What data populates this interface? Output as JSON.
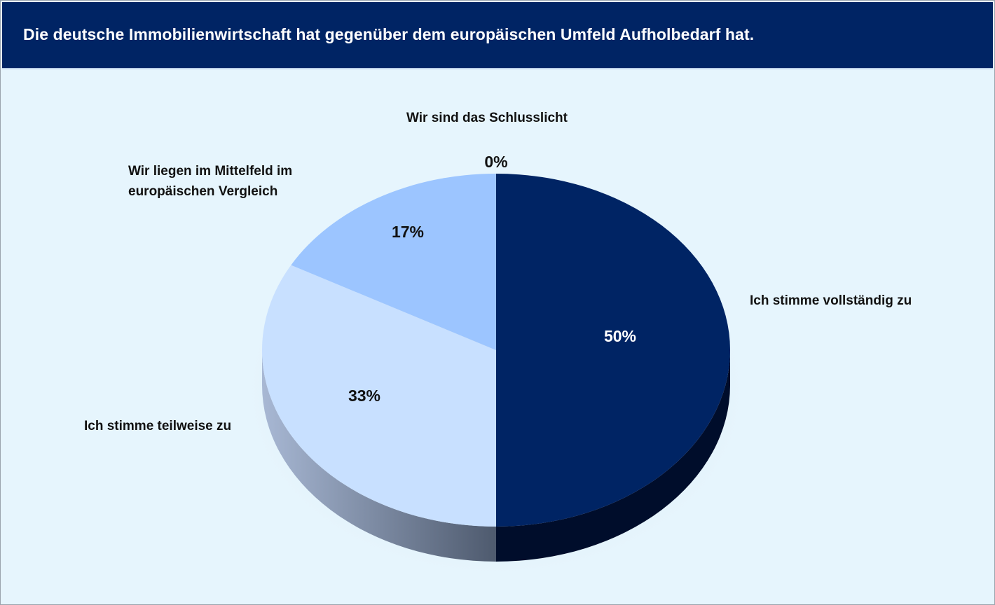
{
  "title": "Die deutsche Immobilienwirtschaft hat gegenüber dem europäischen Umfeld Aufholbedarf hat.",
  "colors": {
    "header": "#002464",
    "background": "#e6f5fd"
  },
  "chart_data": {
    "type": "pie",
    "title": "",
    "three_d": true,
    "legend": "none",
    "slices": [
      {
        "label": "Ich stimme vollständig zu",
        "value": 50,
        "value_label": "50%",
        "color": "#002464",
        "side_color": "#000d2b",
        "text_color": "#ffffff"
      },
      {
        "label": "Ich stimme teilweise zu",
        "value": 33,
        "value_label": "33%",
        "color": "#c8e0ff",
        "side_color": "#7a8aa3",
        "text_color": "#111111"
      },
      {
        "label": "Wir liegen im Mittelfeld im europäischen Vergleich",
        "label_lines": [
          "Wir liegen im Mittelfeld im",
          "europäischen Vergleich"
        ],
        "value": 17,
        "value_label": "17%",
        "color": "#9cc5ff",
        "side_color": "#6f86a8",
        "text_color": "#111111"
      },
      {
        "label": "Wir sind das Schlusslicht",
        "value": 0,
        "value_label": "0%",
        "color": "#5c7fb8",
        "side_color": "#3c5278",
        "text_color": "#111111"
      }
    ]
  }
}
